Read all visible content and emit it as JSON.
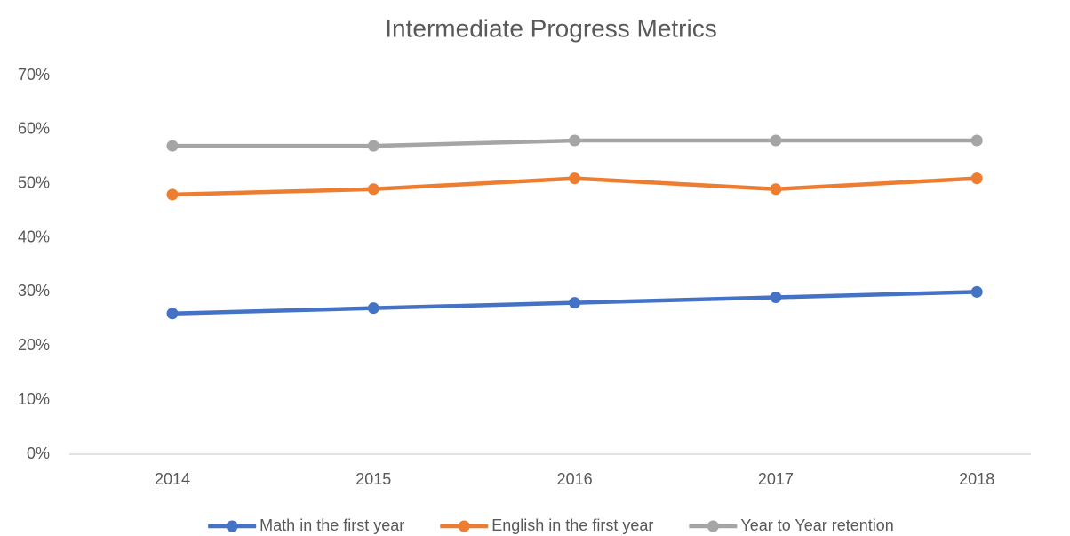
{
  "chart_data": {
    "type": "line",
    "title": "Intermediate Progress Metrics",
    "categories": [
      "2014",
      "2015",
      "2016",
      "2017",
      "2018"
    ],
    "series": [
      {
        "name": "Math in the first year",
        "color": "#4472c4",
        "values": [
          26,
          27,
          28,
          29,
          30
        ]
      },
      {
        "name": "English in the first year",
        "color": "#ed7d31",
        "values": [
          48,
          49,
          51,
          49,
          51
        ]
      },
      {
        "name": "Year to Year retention",
        "color": "#a5a5a5",
        "values": [
          57,
          57,
          58,
          58,
          58
        ]
      }
    ],
    "ylim": [
      0,
      70
    ],
    "yticks": [
      {
        "value": 0,
        "label": "0%"
      },
      {
        "value": 10,
        "label": "10%"
      },
      {
        "value": 20,
        "label": "20%"
      },
      {
        "value": 30,
        "label": "30%"
      },
      {
        "value": 40,
        "label": "40%"
      },
      {
        "value": 50,
        "label": "50%"
      },
      {
        "value": 60,
        "label": "60%"
      },
      {
        "value": 70,
        "label": "70%"
      }
    ],
    "grid": false,
    "legend": "bottom"
  }
}
